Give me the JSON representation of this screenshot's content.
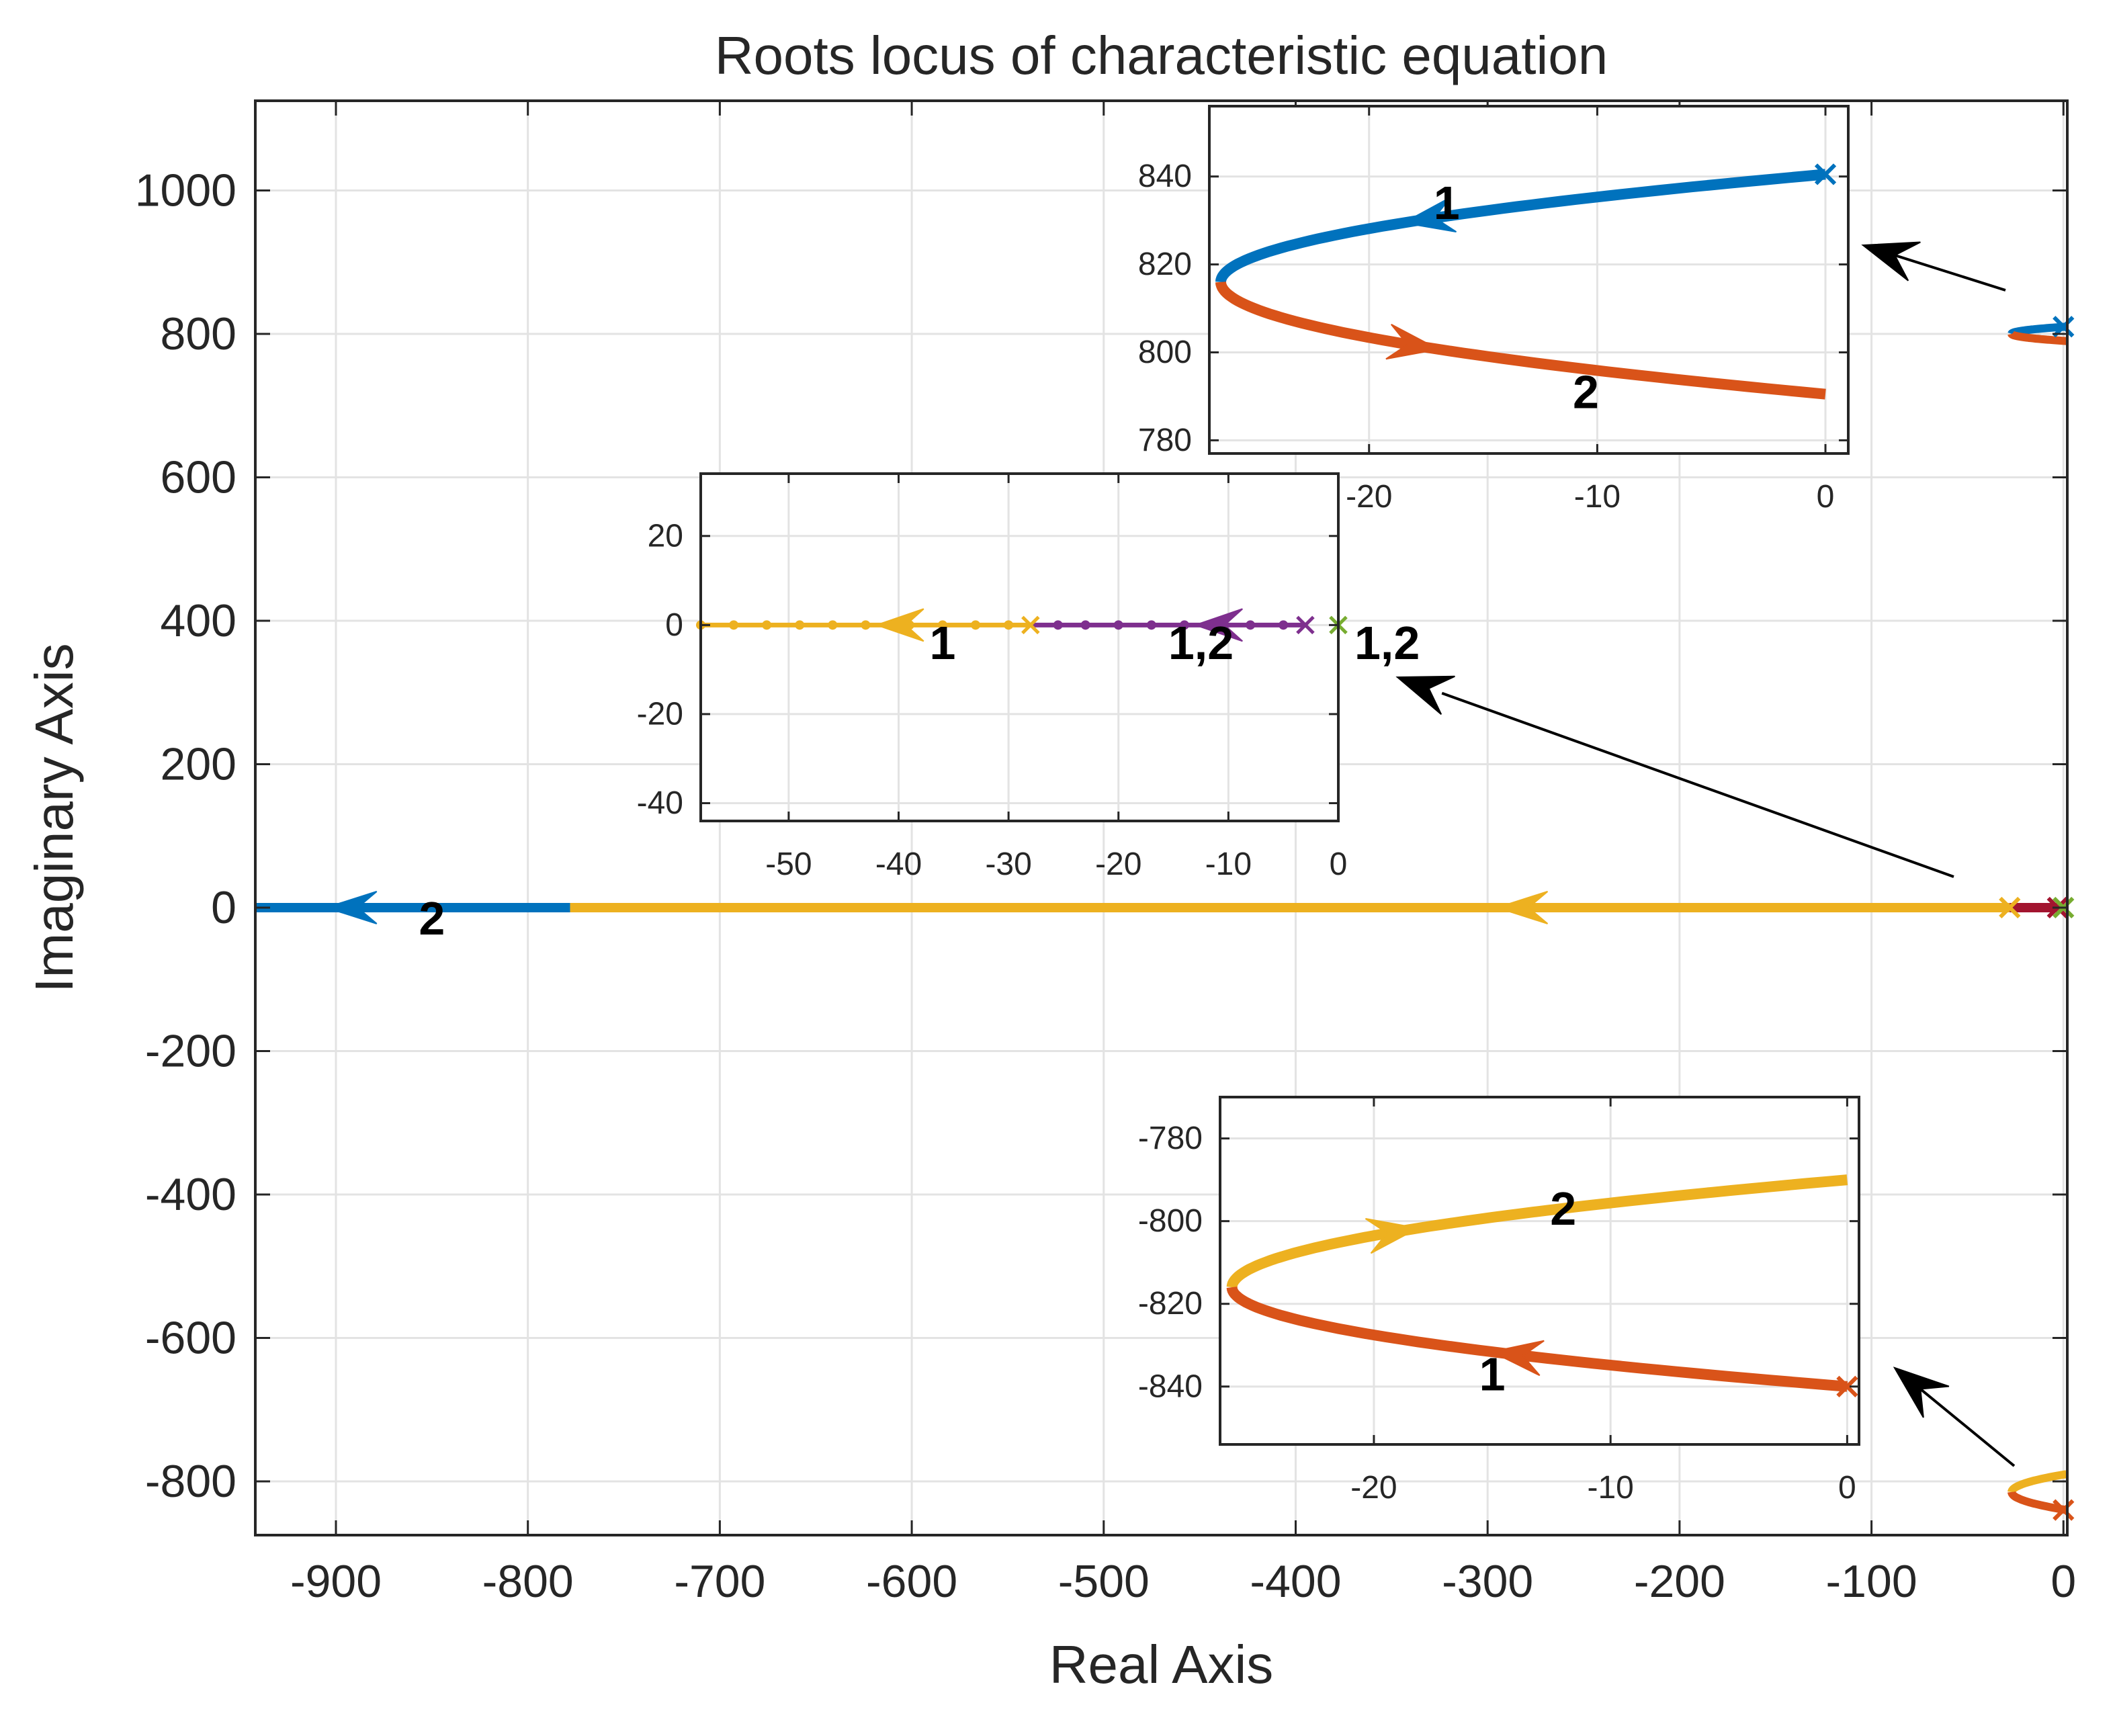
{
  "chart_data": {
    "type": "line",
    "title": "Roots locus of  characteristic equation",
    "xlabel": "Real Axis",
    "ylabel": "Imaginary Axis",
    "grid": true,
    "colors": {
      "blue": "#0072BD",
      "orange": "#D95319",
      "yellow": "#EDB120",
      "purple": "#7E2F8E",
      "green": "#77AC30",
      "red": "#A2142F"
    },
    "main": {
      "xlim": [
        -942,
        2
      ],
      "ylim": [
        -875,
        1125
      ],
      "xticks": [
        -900,
        -800,
        -700,
        -600,
        -500,
        -400,
        -300,
        -200,
        -100,
        0
      ],
      "yticks": [
        -800,
        -600,
        -400,
        -200,
        0,
        200,
        400,
        600,
        800,
        1000
      ],
      "xtick_labels": [
        "-900",
        "-800",
        "-700",
        "-600",
        "-500",
        "-400",
        "-300",
        "-200",
        "-100",
        "0"
      ],
      "ytick_labels": [
        "-800",
        "-600",
        "-400",
        "-200",
        "0",
        "200",
        "400",
        "600",
        "800",
        "1000"
      ],
      "series": [
        {
          "name": "real-branch-2",
          "color": "blue",
          "x": [
            -778,
            -942
          ],
          "y": [
            0,
            0
          ],
          "arrow_at": -905,
          "label": "2",
          "label_at": [
            -850,
            -15
          ]
        },
        {
          "name": "real-branch-1",
          "color": "yellow",
          "x": [
            -28,
            -778
          ],
          "y": [
            0,
            0
          ],
          "arrow_at": -295
        },
        {
          "name": "real-branch-short",
          "color": "red",
          "x": [
            -3,
            -28
          ],
          "y": [
            0,
            0
          ]
        }
      ],
      "poles": [
        {
          "x": -28,
          "y": 0,
          "color": "yellow"
        },
        {
          "x": -3,
          "y": 0,
          "color": "red"
        },
        {
          "x": 0,
          "y": 0,
          "color": "green"
        },
        {
          "x": 0,
          "y": 810,
          "color": "blue"
        },
        {
          "x": 0,
          "y": -840,
          "color": "orange"
        }
      ],
      "upper_loop": {
        "y_top": 810,
        "y_bottom": 790,
        "x_min": -27
      },
      "lower_loop": {
        "y_top": -790,
        "y_bottom": -840,
        "x_min": -27
      }
    },
    "inset_upper": {
      "xlim": [
        -27,
        1
      ],
      "ylim": [
        777,
        856
      ],
      "xticks": [
        -20,
        -10,
        0
      ],
      "yticks": [
        780,
        800,
        820,
        840
      ],
      "xtick_labels": [
        "-20",
        "-10",
        "0"
      ],
      "ytick_labels": [
        "780",
        "800",
        "820",
        "840"
      ],
      "series": [
        {
          "name": "branch-1",
          "color": "blue",
          "from": [
            0,
            840.5
          ],
          "to": [
            -26.5,
            816
          ],
          "arrow_at": 0.45,
          "arrow_dir": "backward",
          "label": "1",
          "label_at": [
            -16.6,
            834
          ]
        },
        {
          "name": "branch-2",
          "color": "orange",
          "from": [
            -26.5,
            816
          ],
          "to": [
            0,
            790.5
          ],
          "arrow_at": 0.6,
          "arrow_dir": "forward",
          "label": "2",
          "label_at": [
            -10.5,
            791
          ]
        }
      ],
      "pole": {
        "x": 0,
        "y": 840.5,
        "color": "blue"
      }
    },
    "inset_middle": {
      "xlim": [
        -58,
        0
      ],
      "ylim": [
        -44,
        34
      ],
      "xticks": [
        -50,
        -40,
        -30,
        -20,
        -10,
        0
      ],
      "yticks": [
        -40,
        -20,
        0,
        20
      ],
      "xtick_labels": [
        "-50",
        "-40",
        "-30",
        "-20",
        "-10",
        "0"
      ],
      "ytick_labels": [
        "-40",
        "-20",
        "0",
        "20"
      ],
      "series": [
        {
          "name": "branch-yellow",
          "color": "yellow",
          "x": [
            -28,
            -58
          ],
          "y": [
            0,
            0
          ],
          "dots": [
            -30,
            -33,
            -36,
            -39,
            -43,
            -46,
            -49,
            -52,
            -55,
            -58
          ],
          "arrow_at": -42,
          "label": "1",
          "label_at": [
            -36,
            -4
          ]
        },
        {
          "name": "branch-purple",
          "color": "purple",
          "x": [
            -3,
            -28
          ],
          "y": [
            0,
            0
          ],
          "dots": [
            -5,
            -8,
            -11,
            -14,
            -17,
            -20,
            -23,
            -25.5
          ],
          "arrow_at": -13,
          "label": "1,2",
          "label_at": [
            -12.5,
            -4
          ]
        }
      ],
      "poles": [
        {
          "x": -28,
          "y": 0,
          "color": "yellow"
        },
        {
          "x": -3,
          "y": 0,
          "color": "purple"
        },
        {
          "x": 0,
          "y": 0,
          "color": "green"
        }
      ],
      "outside_label": "1,2"
    },
    "inset_lower": {
      "xlim": [
        -26.5,
        0.5
      ],
      "ylim": [
        -854,
        -770
      ],
      "xticks": [
        -20,
        -10,
        0
      ],
      "yticks": [
        -840,
        -820,
        -800,
        -780
      ],
      "xtick_labels": [
        "-20",
        "-10",
        "0"
      ],
      "ytick_labels": [
        "-840",
        "-820",
        "-800",
        "-780"
      ],
      "series": [
        {
          "name": "branch-2",
          "color": "yellow",
          "from": [
            -26,
            -816
          ],
          "to": [
            0,
            -790
          ],
          "arrow_at": 0.55,
          "arrow_dir": "forward",
          "label": "2",
          "label_at": [
            -12,
            -797
          ]
        },
        {
          "name": "branch-1",
          "color": "orange",
          "from": [
            0,
            -840
          ],
          "to": [
            -26,
            -816
          ],
          "arrow_at": 0.35,
          "arrow_dir": "backward",
          "label": "1",
          "label_at": [
            -15,
            -837
          ]
        }
      ],
      "pole": {
        "x": 0,
        "y": -840,
        "color": "orange"
      }
    }
  }
}
